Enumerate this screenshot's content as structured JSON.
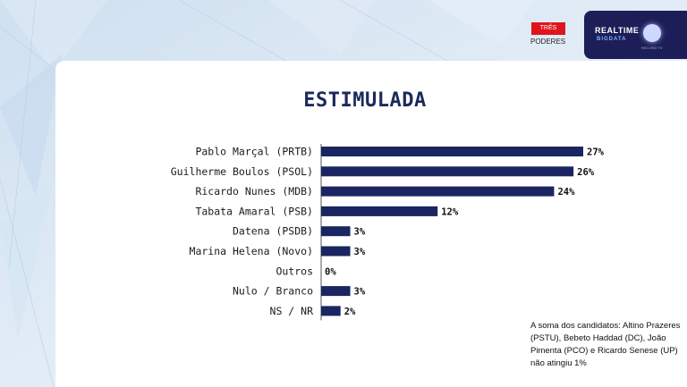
{
  "title": "ESTIMULADA",
  "brand": {
    "tres": "TRÊS",
    "poderes": "PODERES",
    "realtime": "REALTIME",
    "bigdata": "BIGDATA",
    "record": "RECORD TV"
  },
  "note": "A soma dos candidatos: Altino Prazeres (PSTU), Bebeto Haddad (DC), João Pimenta (PCO) e Ricardo Senese (UP) não atingiu 1%",
  "colors": {
    "bar": "#1b2561",
    "title": "#1b2a5c",
    "axis": "#555555"
  },
  "chart_data": {
    "type": "bar",
    "orientation": "horizontal",
    "title": "ESTIMULADA",
    "categories": [
      "Pablo Marçal (PRTB)",
      "Guilherme Boulos (PSOL)",
      "Ricardo Nunes (MDB)",
      "Tabata Amaral (PSB)",
      "Datena (PSDB)",
      "Marina Helena (Novo)",
      "Outros",
      "Nulo / Branco",
      "NS / NR"
    ],
    "values": [
      27,
      26,
      24,
      12,
      3,
      3,
      0,
      3,
      2
    ],
    "value_labels": [
      "27%",
      "26%",
      "24%",
      "12%",
      "3%",
      "3%",
      "0%",
      "3%",
      "2%"
    ],
    "xlim": [
      0,
      27
    ]
  }
}
